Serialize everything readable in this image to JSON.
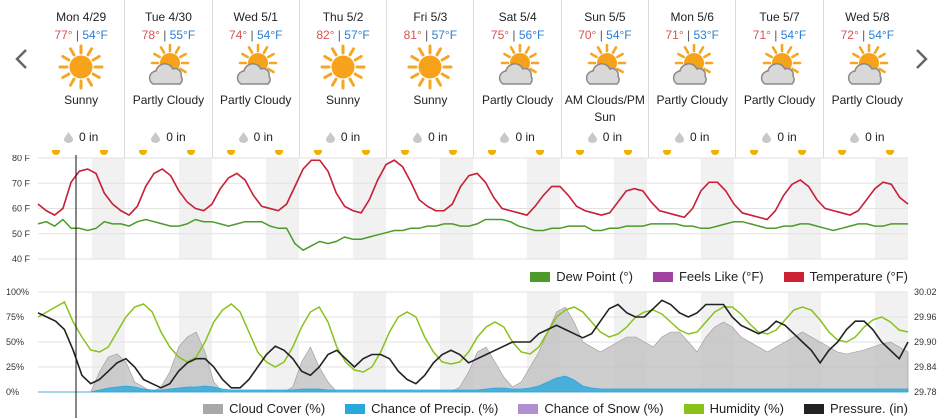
{
  "nav": {
    "prev_icon": "chevron-left-icon",
    "next_icon": "chevron-right-icon"
  },
  "days": [
    {
      "date": "Mon 4/29",
      "hi": "77°",
      "lo": "54°F",
      "icon": "sun-icon",
      "cond": "Sunny",
      "precip": "0 in"
    },
    {
      "date": "Tue 4/30",
      "hi": "78°",
      "lo": "55°F",
      "icon": "partly-cloudy-icon",
      "cond": "Partly Cloudy",
      "precip": "0 in"
    },
    {
      "date": "Wed 5/1",
      "hi": "74°",
      "lo": "54°F",
      "icon": "partly-cloudy-icon",
      "cond": "Partly Cloudy",
      "precip": "0 in"
    },
    {
      "date": "Thu 5/2",
      "hi": "82°",
      "lo": "57°F",
      "icon": "sun-icon",
      "cond": "Sunny",
      "precip": "0 in"
    },
    {
      "date": "Fri 5/3",
      "hi": "81°",
      "lo": "57°F",
      "icon": "sun-icon",
      "cond": "Sunny",
      "precip": "0 in"
    },
    {
      "date": "Sat 5/4",
      "hi": "75°",
      "lo": "56°F",
      "icon": "partly-cloudy-icon",
      "cond": "Partly Cloudy",
      "precip": "0 in"
    },
    {
      "date": "Sun 5/5",
      "hi": "70°",
      "lo": "54°F",
      "icon": "partly-cloudy-icon",
      "cond": "AM Clouds/PM Sun",
      "precip": "0 in"
    },
    {
      "date": "Mon 5/6",
      "hi": "71°",
      "lo": "53°F",
      "icon": "partly-cloudy-icon",
      "cond": "Partly Cloudy",
      "precip": "0 in"
    },
    {
      "date": "Tue 5/7",
      "hi": "71°",
      "lo": "54°F",
      "icon": "partly-cloudy-icon",
      "cond": "Partly Cloudy",
      "precip": "0 in"
    },
    {
      "date": "Wed 5/8",
      "hi": "72°",
      "lo": "54°F",
      "icon": "partly-cloudy-icon",
      "cond": "Partly Cloudy",
      "precip": "0 in"
    }
  ],
  "separator": " | ",
  "chart_data": [
    {
      "type": "line",
      "yticks": [
        "80 F",
        "70 F",
        "60 F",
        "50 F",
        "40 F"
      ],
      "ylim": [
        35,
        81
      ],
      "x": "hour index 0–240 (10 days, 3-hour steps)",
      "series": [
        {
          "name": "Temperature (°F)",
          "color": "#cc2233",
          "values": [
            60,
            57,
            55,
            58,
            70,
            75,
            76,
            74,
            65,
            60,
            57,
            55,
            59,
            68,
            74,
            76,
            73,
            66,
            61,
            58,
            57,
            60,
            67,
            72,
            74,
            71,
            64,
            59,
            58,
            57,
            60,
            68,
            76,
            80,
            80,
            75,
            65,
            59,
            57,
            56,
            62,
            71,
            78,
            80,
            77,
            70,
            62,
            59,
            57,
            57,
            60,
            68,
            73,
            74,
            70,
            63,
            58,
            57,
            56,
            55,
            59,
            64,
            68,
            68,
            64,
            59,
            57,
            56,
            55,
            56,
            61,
            66,
            67,
            66,
            61,
            57,
            56,
            55,
            54,
            58,
            66,
            70,
            70,
            66,
            60,
            56,
            55,
            54,
            53,
            57,
            64,
            69,
            71,
            68,
            62,
            58,
            57,
            56,
            55,
            57,
            62,
            67,
            70,
            69,
            63,
            60
          ]
        },
        {
          "name": "Feels Like (°F)",
          "color": "#a040a0",
          "values": [
            60,
            57,
            55,
            58,
            70,
            75,
            76,
            74,
            65,
            60,
            57,
            55,
            59,
            68,
            74,
            76,
            73,
            66,
            61,
            58,
            57,
            60,
            67,
            72,
            74,
            71,
            64,
            59,
            58,
            57,
            60,
            68,
            76,
            80,
            80,
            75,
            65,
            59,
            57,
            56,
            62,
            71,
            78,
            80,
            77,
            70,
            62,
            59,
            57,
            57,
            60,
            68,
            73,
            74,
            70,
            63,
            58,
            57,
            56,
            55,
            59,
            64,
            68,
            68,
            64,
            59,
            57,
            56,
            55,
            56,
            61,
            66,
            67,
            66,
            61,
            57,
            56,
            55,
            54,
            58,
            66,
            70,
            70,
            66,
            60,
            56,
            55,
            54,
            53,
            57,
            64,
            69,
            71,
            68,
            62,
            58,
            57,
            56,
            55,
            57,
            62,
            67,
            70,
            69,
            63,
            60
          ]
        },
        {
          "name": "Dew Point (°)",
          "color": "#4c9a2a",
          "values": [
            51,
            52,
            50,
            53,
            49,
            49,
            48,
            49,
            52,
            51,
            51,
            50,
            52,
            53,
            52,
            51,
            50,
            50,
            51,
            53,
            52,
            52,
            51,
            50,
            51,
            52,
            52,
            52,
            50,
            49,
            49,
            42,
            39,
            41,
            43,
            42,
            43,
            45,
            44,
            44,
            45,
            46,
            47,
            48,
            48,
            49,
            49,
            50,
            50,
            51,
            51,
            50,
            50,
            51,
            53,
            53,
            53,
            52,
            50,
            49,
            48,
            48,
            49,
            49,
            50,
            50,
            50,
            48,
            48,
            49,
            49,
            50,
            50,
            50,
            51,
            51,
            51,
            51,
            50,
            50,
            49,
            49,
            50,
            51,
            52,
            52,
            51,
            50,
            49,
            49,
            50,
            50,
            51,
            51,
            50,
            49,
            48,
            49,
            50,
            51,
            51,
            50,
            50,
            51,
            51,
            51
          ]
        }
      ],
      "legend": [
        "Dew Point (°)",
        "Feels Like (°F)",
        "Temperature (°F)"
      ],
      "legend_placement": "bottom-right"
    },
    {
      "type": "area",
      "yticks_left": [
        "100%",
        "75%",
        "50%",
        "25%",
        "0%"
      ],
      "yticks_right": [
        "30.02",
        "29.96",
        "29.90",
        "29.84",
        "29.78"
      ],
      "ylim_left": [
        0,
        100
      ],
      "ylim_right": [
        29.78,
        30.02
      ],
      "series": [
        {
          "name": "Cloud Cover (%)",
          "color": "#a8a8a8",
          "type": "area",
          "values": [
            0,
            0,
            0,
            0,
            0,
            0,
            0,
            20,
            35,
            38,
            30,
            10,
            5,
            0,
            5,
            20,
            45,
            55,
            60,
            40,
            10,
            0,
            0,
            0,
            0,
            0,
            0,
            0,
            0,
            5,
            30,
            45,
            25,
            10,
            0,
            0,
            0,
            0,
            0,
            0,
            0,
            0,
            0,
            0,
            0,
            0,
            0,
            0,
            5,
            20,
            40,
            45,
            30,
            15,
            5,
            10,
            25,
            40,
            60,
            80,
            85,
            70,
            50,
            45,
            40,
            45,
            50,
            55,
            55,
            50,
            45,
            55,
            60,
            60,
            50,
            40,
            55,
            65,
            70,
            65,
            55,
            50,
            45,
            40,
            45,
            50,
            55,
            60,
            55,
            50,
            45,
            40,
            38,
            40,
            42,
            45,
            48,
            50,
            45,
            40
          ]
        },
        {
          "name": "Chance of Precip. (%)",
          "color": "#29a8dd",
          "type": "area",
          "values": [
            0,
            0,
            0,
            0,
            0,
            0,
            0,
            2,
            4,
            5,
            6,
            5,
            3,
            2,
            2,
            3,
            4,
            5,
            5,
            6,
            5,
            3,
            2,
            2,
            2,
            2,
            2,
            2,
            2,
            2,
            3,
            3,
            3,
            2,
            2,
            2,
            2,
            2,
            2,
            2,
            2,
            2,
            2,
            2,
            2,
            2,
            2,
            2,
            2,
            2,
            2,
            3,
            4,
            4,
            3,
            3,
            4,
            6,
            10,
            14,
            16,
            12,
            6,
            4,
            3,
            3,
            3,
            3,
            3,
            3,
            3,
            3,
            3,
            3,
            3,
            3,
            3,
            3,
            3,
            3,
            3,
            3,
            3,
            3,
            3,
            3,
            3,
            3,
            3,
            3,
            3,
            3,
            3,
            3,
            3,
            3,
            3,
            3,
            3,
            3
          ]
        },
        {
          "name": "Chance of Snow (%)",
          "color": "#b090d0",
          "type": "area",
          "values": []
        },
        {
          "name": "Humidity (%)",
          "color": "#88c21a",
          "type": "line",
          "values": [
            75,
            80,
            85,
            90,
            70,
            55,
            42,
            40,
            45,
            60,
            75,
            85,
            88,
            80,
            60,
            45,
            35,
            30,
            35,
            50,
            70,
            82,
            88,
            80,
            60,
            40,
            30,
            25,
            30,
            45,
            65,
            80,
            85,
            70,
            45,
            30,
            22,
            20,
            25,
            40,
            60,
            75,
            80,
            75,
            55,
            40,
            30,
            28,
            30,
            40,
            55,
            65,
            70,
            65,
            50,
            40,
            38,
            45,
            60,
            75,
            82,
            85,
            80,
            70,
            60,
            55,
            58,
            65,
            75,
            80,
            82,
            78,
            70,
            62,
            58,
            60,
            70,
            80,
            85,
            85,
            78,
            68,
            60,
            58,
            62,
            72,
            82,
            85,
            82,
            72,
            60,
            52,
            50,
            55,
            65,
            72,
            75,
            70,
            62,
            60
          ]
        },
        {
          "name": "Pressure. (in)",
          "color": "#222222",
          "type": "line",
          "values": [
            29.97,
            29.96,
            29.95,
            29.93,
            29.88,
            29.82,
            29.8,
            29.81,
            29.83,
            29.85,
            29.86,
            29.84,
            29.81,
            29.8,
            29.79,
            29.8,
            29.83,
            29.85,
            29.86,
            29.86,
            29.84,
            29.81,
            29.79,
            29.79,
            29.81,
            29.84,
            29.87,
            29.89,
            29.88,
            29.86,
            29.83,
            29.82,
            29.84,
            29.87,
            29.88,
            29.86,
            29.84,
            29.86,
            29.87,
            29.87,
            29.86,
            29.83,
            29.81,
            29.8,
            29.82,
            29.85,
            29.87,
            29.88,
            29.87,
            29.85,
            29.86,
            29.87,
            29.88,
            29.89,
            29.9,
            29.9,
            29.9,
            29.92,
            29.93,
            29.94,
            29.93,
            29.92,
            29.91,
            29.92,
            29.95,
            29.98,
            29.99,
            29.97,
            29.96,
            29.96,
            29.98,
            30.0,
            29.99,
            29.97,
            29.96,
            29.97,
            29.99,
            29.99,
            29.99,
            29.96,
            29.94,
            29.93,
            29.92,
            29.93,
            29.95,
            29.94,
            29.92,
            29.9,
            29.88,
            29.85,
            29.88,
            29.9,
            29.93,
            29.95,
            29.95,
            29.93,
            29.9,
            29.88,
            29.86,
            29.9
          ]
        }
      ],
      "legend": [
        "Cloud Cover (%)",
        "Chance of Precip. (%)",
        "Chance of Snow (%)",
        "Humidity (%)",
        "Pressure. (in)"
      ],
      "legend_placement": "bottom-right"
    }
  ],
  "legend1": [
    {
      "label": "Dew Point (°)",
      "color": "#4c9a2a"
    },
    {
      "label": "Feels Like (°F)",
      "color": "#a040a0"
    },
    {
      "label": "Temperature (°F)",
      "color": "#cc2233"
    }
  ],
  "legend2": [
    {
      "label": "Cloud Cover (%)",
      "color": "#a8a8a8"
    },
    {
      "label": "Chance of Precip. (%)",
      "color": "#29a8dd"
    },
    {
      "label": "Chance of Snow (%)",
      "color": "#b090d0"
    },
    {
      "label": "Humidity (%)",
      "color": "#88c21a"
    },
    {
      "label": "Pressure. (in)",
      "color": "#222222"
    }
  ]
}
